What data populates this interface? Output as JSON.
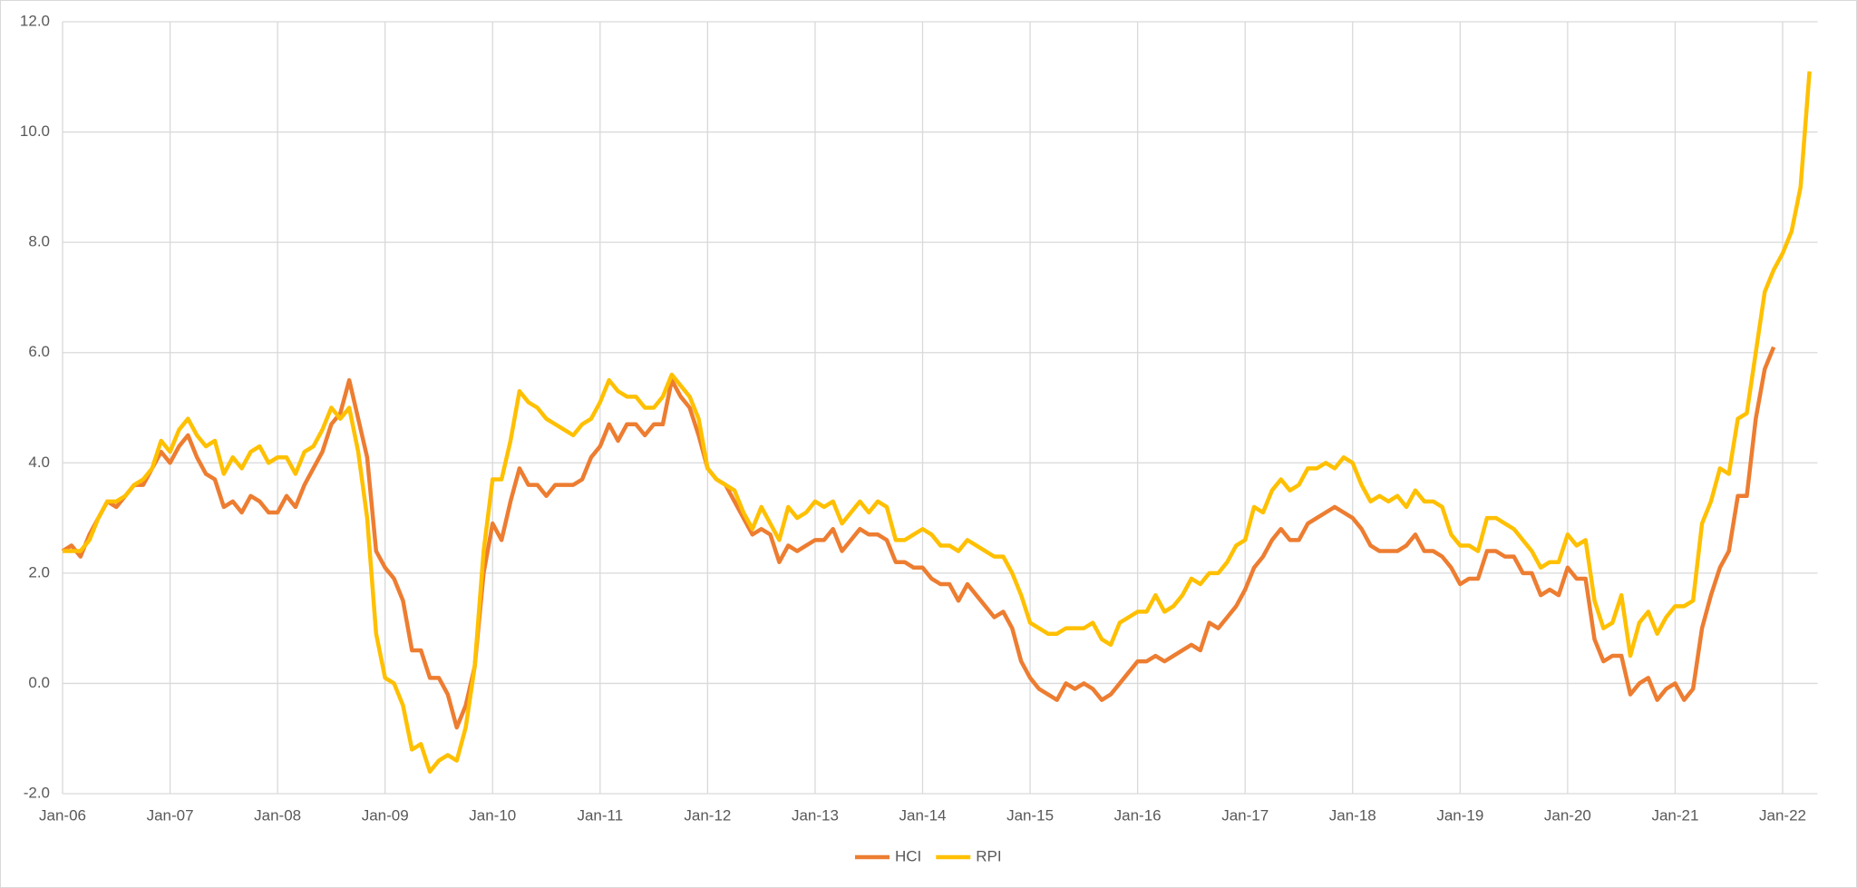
{
  "chart_data": {
    "type": "line",
    "categories": [
      "Jan-06",
      null,
      null,
      null,
      null,
      null,
      null,
      null,
      null,
      null,
      null,
      null,
      "Jan-07",
      null,
      null,
      null,
      null,
      null,
      null,
      null,
      null,
      null,
      null,
      null,
      "Jan-08",
      null,
      null,
      null,
      null,
      null,
      null,
      null,
      null,
      null,
      null,
      null,
      "Jan-09",
      null,
      null,
      null,
      null,
      null,
      null,
      null,
      null,
      null,
      null,
      null,
      "Jan-10",
      null,
      null,
      null,
      null,
      null,
      null,
      null,
      null,
      null,
      null,
      null,
      "Jan-11",
      null,
      null,
      null,
      null,
      null,
      null,
      null,
      null,
      null,
      null,
      null,
      "Jan-12",
      null,
      null,
      null,
      null,
      null,
      null,
      null,
      null,
      null,
      null,
      null,
      "Jan-13",
      null,
      null,
      null,
      null,
      null,
      null,
      null,
      null,
      null,
      null,
      null,
      "Jan-14",
      null,
      null,
      null,
      null,
      null,
      null,
      null,
      null,
      null,
      null,
      null,
      "Jan-15",
      null,
      null,
      null,
      null,
      null,
      null,
      null,
      null,
      null,
      null,
      null,
      "Jan-16",
      null,
      null,
      null,
      null,
      null,
      null,
      null,
      null,
      null,
      null,
      null,
      "Jan-17",
      null,
      null,
      null,
      null,
      null,
      null,
      null,
      null,
      null,
      null,
      null,
      "Jan-18",
      null,
      null,
      null,
      null,
      null,
      null,
      null,
      null,
      null,
      null,
      null,
      "Jan-19",
      null,
      null,
      null,
      null,
      null,
      null,
      null,
      null,
      null,
      null,
      null,
      "Jan-20",
      null,
      null,
      null,
      null,
      null,
      null,
      null,
      null,
      null,
      null,
      null,
      "Jan-21",
      null,
      null,
      null,
      null,
      null,
      null,
      null,
      null,
      null,
      null,
      null,
      "Jan-22",
      null,
      null,
      null
    ],
    "series": [
      {
        "name": "HCI",
        "color": "#ED7D31",
        "values": [
          2.4,
          2.5,
          2.3,
          2.7,
          3.0,
          3.3,
          3.2,
          3.4,
          3.6,
          3.6,
          3.9,
          4.2,
          4.0,
          4.3,
          4.5,
          4.1,
          3.8,
          3.7,
          3.2,
          3.3,
          3.1,
          3.4,
          3.3,
          3.1,
          3.1,
          3.4,
          3.2,
          3.6,
          3.9,
          4.2,
          4.7,
          4.9,
          5.5,
          4.8,
          4.1,
          2.4,
          2.1,
          1.9,
          1.5,
          0.6,
          0.6,
          0.1,
          0.1,
          -0.2,
          -0.8,
          -0.4,
          0.3,
          2.0,
          2.9,
          2.6,
          3.3,
          3.9,
          3.6,
          3.6,
          3.4,
          3.6,
          3.6,
          3.6,
          3.7,
          4.1,
          4.3,
          4.7,
          4.4,
          4.7,
          4.7,
          4.5,
          4.7,
          4.7,
          5.5,
          5.2,
          5.0,
          4.5,
          3.9,
          3.7,
          3.6,
          3.3,
          3.0,
          2.7,
          2.8,
          2.7,
          2.2,
          2.5,
          2.4,
          2.5,
          2.6,
          2.6,
          2.8,
          2.4,
          2.6,
          2.8,
          2.7,
          2.7,
          2.6,
          2.2,
          2.2,
          2.1,
          2.1,
          1.9,
          1.8,
          1.8,
          1.5,
          1.8,
          1.6,
          1.4,
          1.2,
          1.3,
          1.0,
          0.4,
          0.1,
          -0.1,
          -0.2,
          -0.3,
          0.0,
          -0.1,
          0.0,
          -0.1,
          -0.3,
          -0.2,
          0.0,
          0.2,
          0.4,
          0.4,
          0.5,
          0.4,
          0.5,
          0.6,
          0.7,
          0.6,
          1.1,
          1.0,
          1.2,
          1.4,
          1.7,
          2.1,
          2.3,
          2.6,
          2.8,
          2.6,
          2.6,
          2.9,
          3.0,
          3.1,
          3.2,
          3.1,
          3.0,
          2.8,
          2.5,
          2.4,
          2.4,
          2.4,
          2.5,
          2.7,
          2.4,
          2.4,
          2.3,
          2.1,
          1.8,
          1.9,
          1.9,
          2.4,
          2.4,
          2.3,
          2.3,
          2.0,
          2.0,
          1.6,
          1.7,
          1.6,
          2.1,
          1.9,
          1.9,
          0.8,
          0.4,
          0.5,
          0.5,
          -0.2,
          0.0,
          0.1,
          -0.3,
          -0.1,
          0.0,
          -0.3,
          -0.1,
          1.0,
          1.6,
          2.1,
          2.4,
          3.4,
          3.4,
          4.8,
          5.7,
          6.1,
          null,
          null,
          null,
          null
        ]
      },
      {
        "name": "RPI",
        "color": "#FFC000",
        "values": [
          2.4,
          2.4,
          2.4,
          2.6,
          3.0,
          3.3,
          3.3,
          3.4,
          3.6,
          3.7,
          3.9,
          4.4,
          4.2,
          4.6,
          4.8,
          4.5,
          4.3,
          4.4,
          3.8,
          4.1,
          3.9,
          4.2,
          4.3,
          4.0,
          4.1,
          4.1,
          3.8,
          4.2,
          4.3,
          4.6,
          5.0,
          4.8,
          5.0,
          4.2,
          3.0,
          0.9,
          0.1,
          0.0,
          -0.4,
          -1.2,
          -1.1,
          -1.6,
          -1.4,
          -1.3,
          -1.4,
          -0.8,
          0.3,
          2.4,
          3.7,
          3.7,
          4.4,
          5.3,
          5.1,
          5.0,
          4.8,
          4.7,
          4.6,
          4.5,
          4.7,
          4.8,
          5.1,
          5.5,
          5.3,
          5.2,
          5.2,
          5.0,
          5.0,
          5.2,
          5.6,
          5.4,
          5.2,
          4.8,
          3.9,
          3.7,
          3.6,
          3.5,
          3.1,
          2.8,
          3.2,
          2.9,
          2.6,
          3.2,
          3.0,
          3.1,
          3.3,
          3.2,
          3.3,
          2.9,
          3.1,
          3.3,
          3.1,
          3.3,
          3.2,
          2.6,
          2.6,
          2.7,
          2.8,
          2.7,
          2.5,
          2.5,
          2.4,
          2.6,
          2.5,
          2.4,
          2.3,
          2.3,
          2.0,
          1.6,
          1.1,
          1.0,
          0.9,
          0.9,
          1.0,
          1.0,
          1.0,
          1.1,
          0.8,
          0.7,
          1.1,
          1.2,
          1.3,
          1.3,
          1.6,
          1.3,
          1.4,
          1.6,
          1.9,
          1.8,
          2.0,
          2.0,
          2.2,
          2.5,
          2.6,
          3.2,
          3.1,
          3.5,
          3.7,
          3.5,
          3.6,
          3.9,
          3.9,
          4.0,
          3.9,
          4.1,
          4.0,
          3.6,
          3.3,
          3.4,
          3.3,
          3.4,
          3.2,
          3.5,
          3.3,
          3.3,
          3.2,
          2.7,
          2.5,
          2.5,
          2.4,
          3.0,
          3.0,
          2.9,
          2.8,
          2.6,
          2.4,
          2.1,
          2.2,
          2.2,
          2.7,
          2.5,
          2.6,
          1.5,
          1.0,
          1.1,
          1.6,
          0.5,
          1.1,
          1.3,
          0.9,
          1.2,
          1.4,
          1.4,
          1.5,
          2.9,
          3.3,
          3.9,
          3.8,
          4.8,
          4.9,
          6.0,
          7.1,
          7.5,
          7.8,
          8.2,
          9.0,
          11.1
        ]
      }
    ],
    "ylim": [
      -2,
      12
    ],
    "yticks": [
      {
        "value": -2,
        "label": "-2.0"
      },
      {
        "value": 0,
        "label": "0.0"
      },
      {
        "value": 2,
        "label": "2.0"
      },
      {
        "value": 4,
        "label": "4.0"
      },
      {
        "value": 6,
        "label": "6.0"
      },
      {
        "value": 8,
        "label": "8.0"
      },
      {
        "value": 10,
        "label": "10.0"
      },
      {
        "value": 12,
        "label": "12.0"
      }
    ],
    "grid": true,
    "legend": "bottom"
  }
}
